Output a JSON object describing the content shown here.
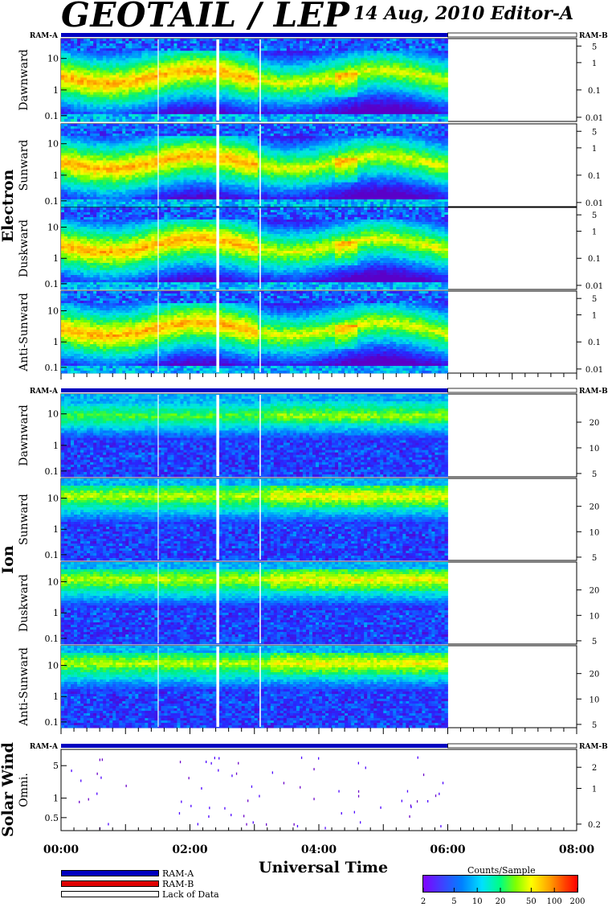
{
  "header": {
    "title": "GEOTAIL / LEP",
    "date_editor": "14 Aug, 2010   Editor-A"
  },
  "ram_a_label": "RAM-A",
  "ram_b_label": "RAM-B",
  "groups": {
    "electron": "Electron",
    "ion": "Ion",
    "solar_wind": "Solar Wind"
  },
  "x_axis": {
    "title": "Universal Time",
    "ticks": [
      "00:00",
      "02:00",
      "04:00",
      "06:00",
      "08:00"
    ]
  },
  "legend": {
    "ram_a": "RAM-A",
    "ram_b": "RAM-B",
    "lack": "Lack of Data"
  },
  "colorbar": {
    "title": "Counts/Sample",
    "ticks": [
      "2",
      "5",
      "10",
      "20",
      "50",
      "100",
      "200"
    ]
  },
  "colors": {
    "ram_a": "#0000c0",
    "ram_b": "#e00000"
  },
  "chart_data": [
    {
      "type": "heatmap",
      "group": "Electron",
      "panel": "Dawnward",
      "x_range_hours": [
        0,
        8
      ],
      "data_end_hour": 6,
      "y_left_ticks": [
        "10",
        "1",
        "0.1"
      ],
      "y_right_ticks": [
        "5",
        "1",
        "0.1",
        "0.01"
      ],
      "peak_level": "orange"
    },
    {
      "type": "heatmap",
      "group": "Electron",
      "panel": "Sunward",
      "x_range_hours": [
        0,
        8
      ],
      "data_end_hour": 6,
      "y_left_ticks": [
        "10",
        "1",
        "0.1"
      ],
      "y_right_ticks": [
        "5",
        "1",
        "0.1",
        "0.01"
      ],
      "peak_level": "orange"
    },
    {
      "type": "heatmap",
      "group": "Electron",
      "panel": "Duskward",
      "x_range_hours": [
        0,
        8
      ],
      "data_end_hour": 6,
      "y_left_ticks": [
        "10",
        "1",
        "0.1"
      ],
      "y_right_ticks": [
        "5",
        "1",
        "0.1",
        "0.01"
      ],
      "peak_level": "orange"
    },
    {
      "type": "heatmap",
      "group": "Electron",
      "panel": "Anti-Sunward",
      "x_range_hours": [
        0,
        8
      ],
      "data_end_hour": 6,
      "y_left_ticks": [
        "10",
        "1",
        "0.1"
      ],
      "y_right_ticks": [
        "5",
        "1",
        "0.1",
        "0.01"
      ],
      "peak_level": "orange"
    },
    {
      "type": "heatmap",
      "group": "Ion",
      "panel": "Dawnward",
      "x_range_hours": [
        0,
        8
      ],
      "data_end_hour": 6,
      "y_left_ticks": [
        "10",
        "1",
        "0.1"
      ],
      "y_right_ticks": [
        "20",
        "10",
        "5"
      ],
      "peak_level": "green"
    },
    {
      "type": "heatmap",
      "group": "Ion",
      "panel": "Sunward",
      "x_range_hours": [
        0,
        8
      ],
      "data_end_hour": 6,
      "y_left_ticks": [
        "10",
        "1",
        "0.1"
      ],
      "y_right_ticks": [
        "20",
        "10",
        "5"
      ],
      "peak_level": "yellow"
    },
    {
      "type": "heatmap",
      "group": "Ion",
      "panel": "Duskward",
      "x_range_hours": [
        0,
        8
      ],
      "data_end_hour": 6,
      "y_left_ticks": [
        "10",
        "1",
        "0.1"
      ],
      "y_right_ticks": [
        "20",
        "10",
        "5"
      ],
      "peak_level": "yellow"
    },
    {
      "type": "heatmap",
      "group": "Ion",
      "panel": "Anti-Sunward",
      "x_range_hours": [
        0,
        8
      ],
      "data_end_hour": 6,
      "y_left_ticks": [
        "10",
        "1",
        "0.1"
      ],
      "y_right_ticks": [
        "20",
        "10",
        "5"
      ],
      "peak_level": "yellow"
    },
    {
      "type": "scatter",
      "group": "Solar Wind",
      "panel": "Omni.",
      "x_range_hours": [
        0,
        8
      ],
      "data_end_hour": 6,
      "y_left_ticks": [
        "5",
        "1",
        "0.5"
      ],
      "y_right_ticks": [
        "2",
        "1",
        "0.2"
      ]
    }
  ]
}
